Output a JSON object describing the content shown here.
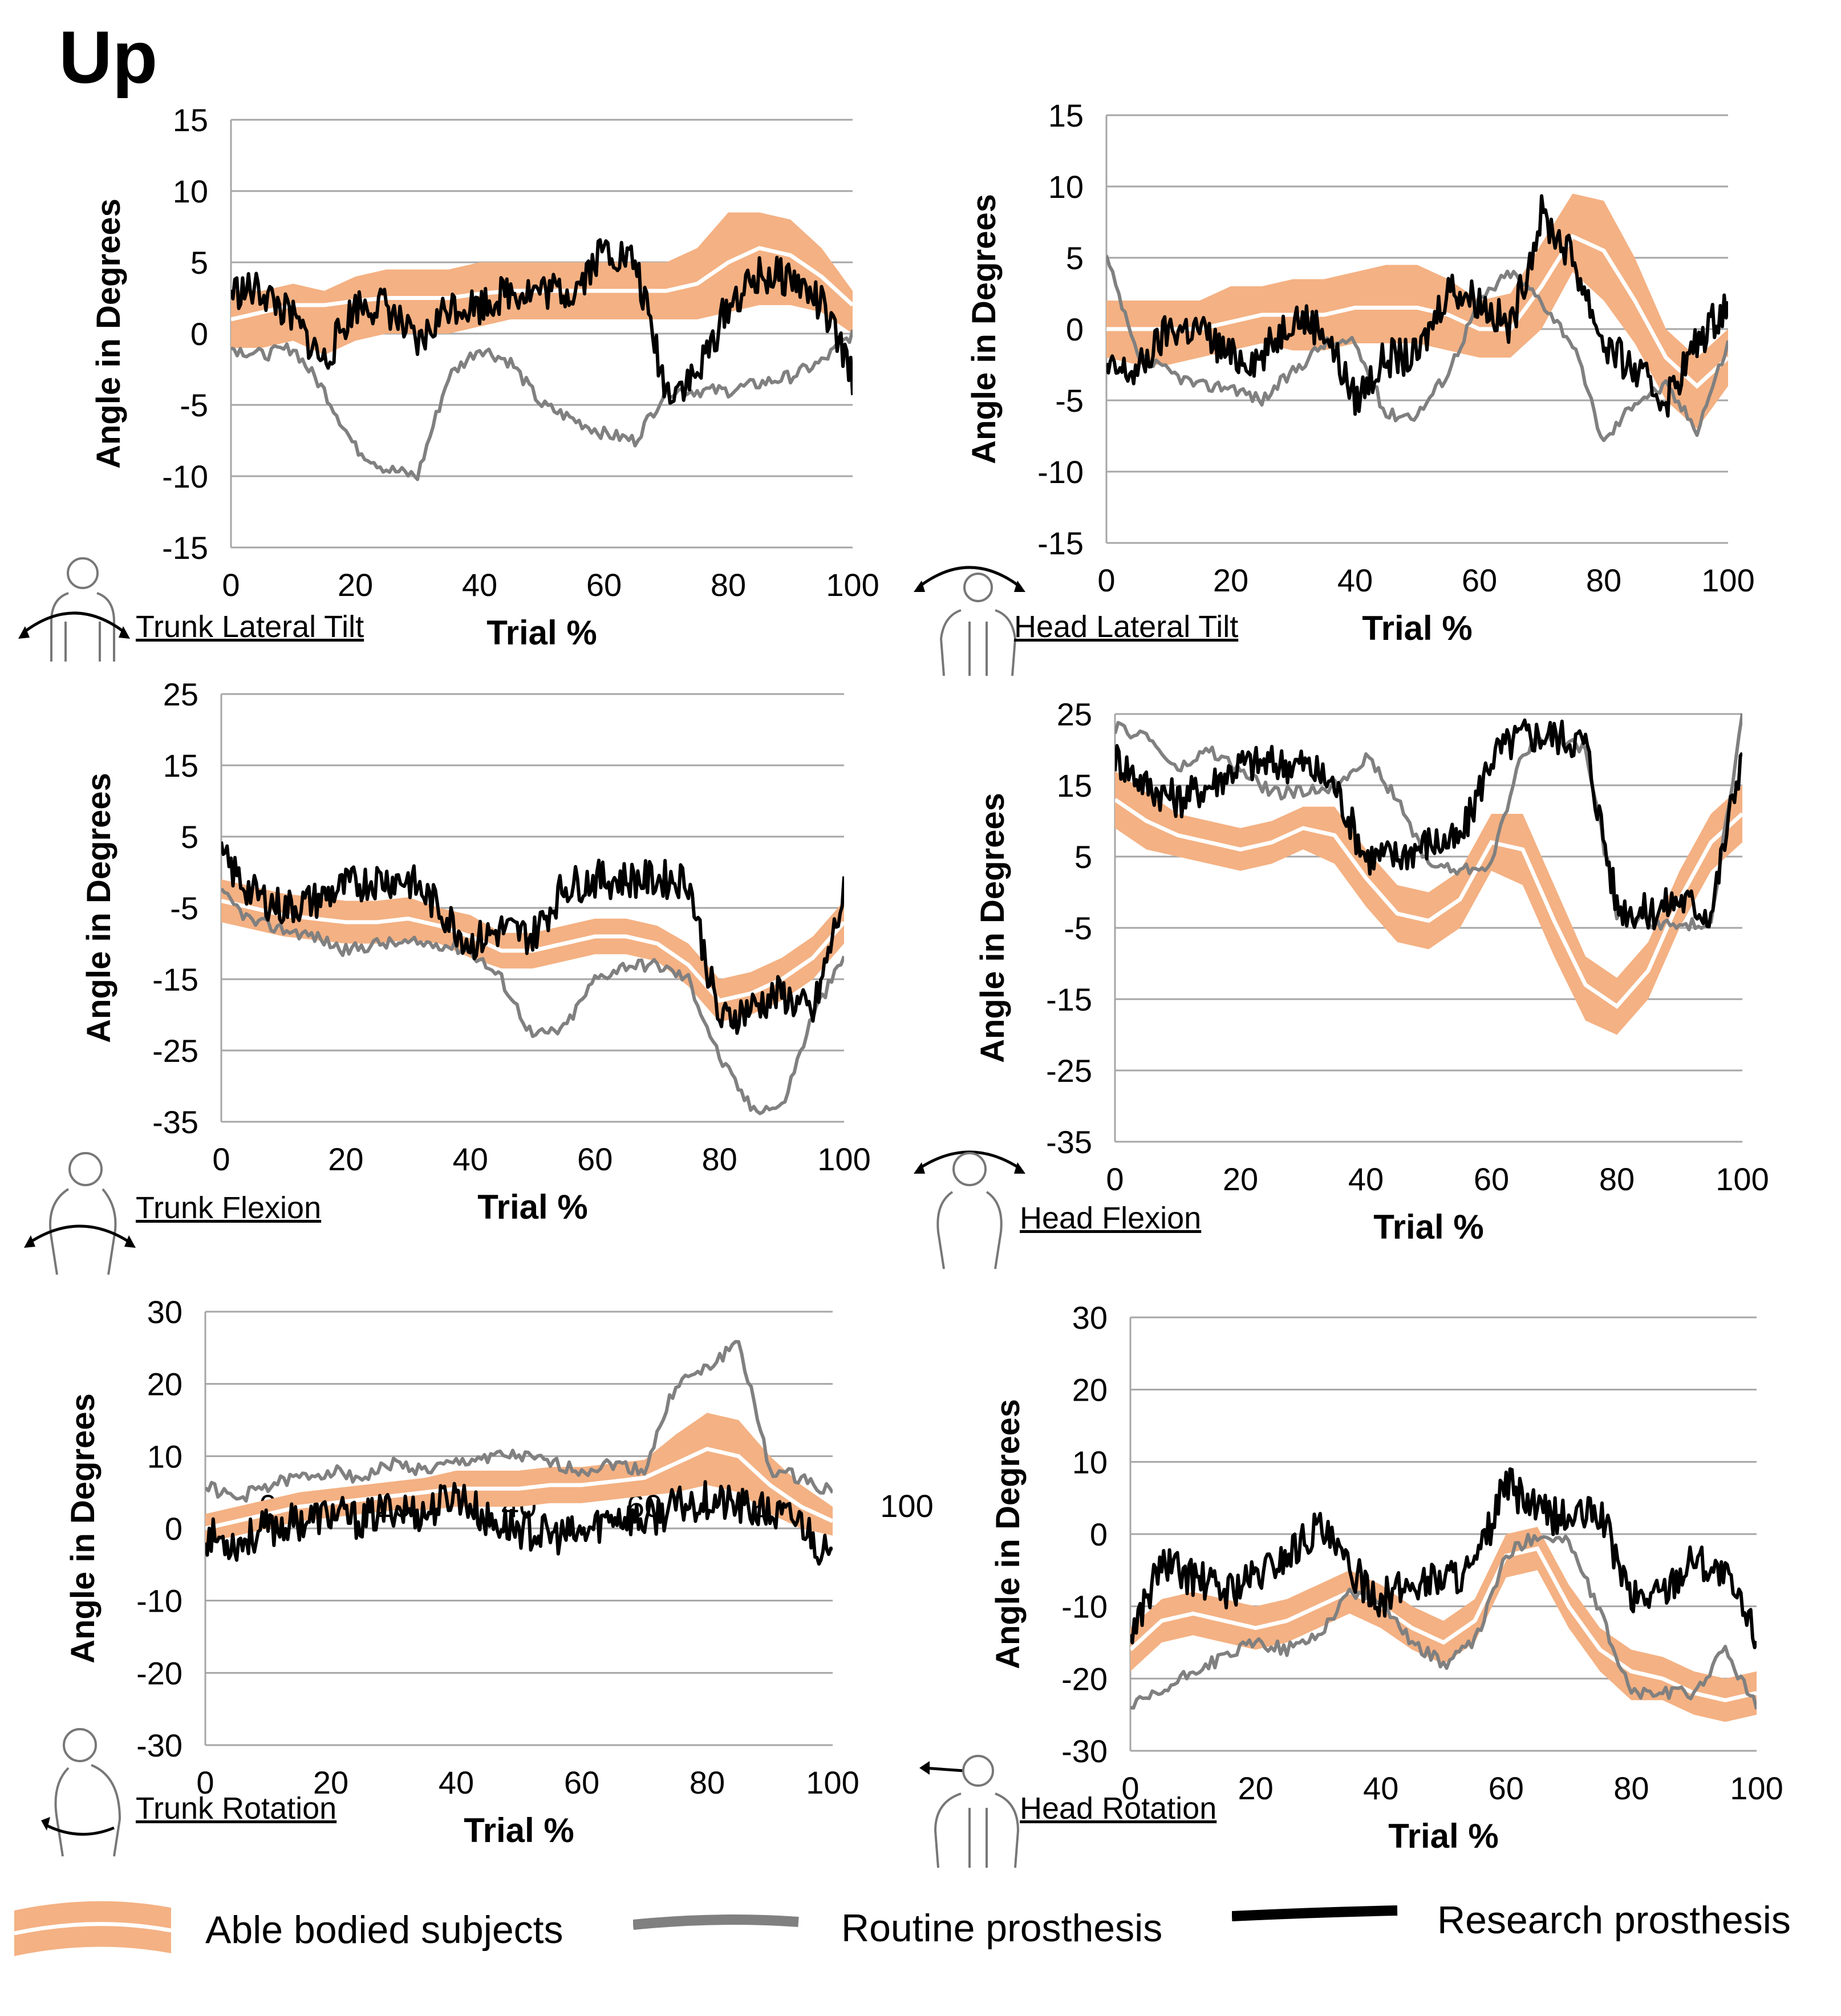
{
  "figure_title": "Up",
  "colors": {
    "band": "#f4b183",
    "band_center": "#ffffff",
    "routine": "#808080",
    "research": "#000000",
    "grid": "#a6a6a6"
  },
  "legend": {
    "able_bodied": "Able bodied subjects",
    "routine": "Routine prosthesis",
    "research": "Research prosthesis"
  },
  "chart_data": [
    {
      "id": "trunk_lateral_tilt",
      "type": "line",
      "caption": "Trunk Lateral Tilt",
      "icon": "trunk-lateral-tilt-icon",
      "ylabel": "Angle in Degrees",
      "xlabel": "Trial %",
      "xlim": [
        0,
        100
      ],
      "ylim": [
        -15,
        15
      ],
      "yticks": [
        15,
        10,
        5,
        0,
        -5,
        -10,
        -15
      ],
      "xticks": [
        0,
        20,
        40,
        60,
        80,
        100
      ],
      "x": [
        0,
        5,
        10,
        15,
        20,
        25,
        30,
        35,
        40,
        45,
        50,
        55,
        60,
        65,
        70,
        75,
        80,
        85,
        90,
        95,
        100
      ],
      "series": [
        {
          "name": "Able bodied subjects",
          "kind": "band",
          "mean": [
            1,
            1.5,
            2,
            2,
            2.3,
            2.5,
            2.5,
            2.5,
            2.8,
            3,
            3,
            3,
            3,
            3,
            3,
            3.5,
            5,
            6,
            5.5,
            4,
            2
          ],
          "lower": [
            -1,
            -1,
            -0.5,
            -1.5,
            -0.5,
            0,
            0,
            0,
            0.5,
            1,
            1,
            1,
            1,
            1,
            1,
            1,
            1.5,
            2,
            2,
            1.5,
            0
          ],
          "upper": [
            3,
            3,
            3.5,
            3,
            4,
            4.5,
            4.5,
            4.5,
            5,
            5,
            5,
            5,
            5,
            5,
            5,
            6,
            8.5,
            8.5,
            8,
            6,
            3
          ]
        },
        {
          "name": "Routine prosthesis",
          "kind": "line",
          "values": [
            -1,
            -1.5,
            -1,
            -4,
            -8,
            -9.5,
            -10,
            -3,
            -1,
            -2,
            -5,
            -6,
            -7,
            -7.5,
            -4,
            -4,
            -4,
            -3.5,
            -3,
            -2,
            0
          ]
        },
        {
          "name": "Research prosthesis",
          "kind": "line",
          "values": [
            3,
            3,
            1,
            -2,
            2,
            2,
            -1,
            2,
            2,
            3,
            3,
            3,
            6,
            5,
            -4,
            -3,
            2,
            4,
            4,
            2,
            -3
          ]
        }
      ]
    },
    {
      "id": "head_lateral_tilt",
      "type": "line",
      "caption": "Head Lateral Tilt",
      "icon": "head-lateral-tilt-icon",
      "ylabel": "Angle in Degrees",
      "xlabel": "Trial %",
      "xlim": [
        0,
        100
      ],
      "ylim": [
        -15,
        15
      ],
      "yticks": [
        15,
        10,
        5,
        0,
        -5,
        -10,
        -15
      ],
      "xticks": [
        0,
        20,
        40,
        60,
        80,
        100
      ],
      "x": [
        0,
        5,
        10,
        15,
        20,
        25,
        30,
        35,
        40,
        45,
        50,
        55,
        60,
        65,
        70,
        75,
        80,
        85,
        90,
        95,
        100
      ],
      "series": [
        {
          "name": "Able bodied subjects",
          "kind": "band",
          "mean": [
            0,
            0,
            0,
            0,
            0.5,
            1,
            1,
            1,
            1.5,
            1.5,
            1.5,
            1,
            0,
            0,
            3,
            6.5,
            5.5,
            2,
            -2,
            -4,
            -2
          ],
          "lower": [
            -2,
            -2.5,
            -2.5,
            -2,
            -1.5,
            -1,
            -1.5,
            -1.5,
            -1,
            -1,
            -1,
            -1.5,
            -2,
            -2,
            0,
            4,
            2,
            -1,
            -5,
            -7,
            -4
          ],
          "upper": [
            2,
            2,
            2,
            2,
            3,
            3,
            3.5,
            3.5,
            4,
            4.5,
            4.5,
            3.5,
            2,
            2.5,
            6,
            9.5,
            9,
            5,
            0,
            -2,
            0
          ]
        },
        {
          "name": "Routine prosthesis",
          "kind": "line",
          "values": [
            5,
            -2,
            -3,
            -4,
            -4,
            -5,
            -3,
            -1,
            -1,
            -6,
            -6,
            -3,
            2,
            4,
            2,
            -1,
            -8,
            -5,
            -4,
            -7,
            -1
          ]
        },
        {
          "name": "Research prosthesis",
          "kind": "line",
          "values": [
            -3,
            -3,
            0,
            0,
            -2,
            -2,
            1,
            0,
            -5,
            -2,
            -2,
            3,
            2,
            0,
            8,
            5,
            -1,
            -3,
            -5,
            -1,
            2
          ]
        }
      ]
    },
    {
      "id": "trunk_flexion",
      "type": "line",
      "caption": "Trunk Flexion",
      "icon": "trunk-flexion-icon",
      "ylabel": "Angle in Degrees",
      "xlabel": "Trial %",
      "xlim": [
        0,
        100
      ],
      "ylim": [
        -35,
        25
      ],
      "yticks": [
        25,
        15,
        5,
        -5,
        -15,
        -25,
        -35
      ],
      "xticks": [
        0,
        20,
        40,
        60,
        80,
        100
      ],
      "x": [
        0,
        5,
        10,
        15,
        20,
        25,
        30,
        35,
        40,
        45,
        50,
        55,
        60,
        65,
        70,
        75,
        80,
        85,
        90,
        95,
        100
      ],
      "series": [
        {
          "name": "Able bodied subjects",
          "kind": "band",
          "mean": [
            -4,
            -5,
            -6,
            -6.5,
            -7,
            -7,
            -6.5,
            -7.5,
            -9,
            -11,
            -11,
            -10,
            -9,
            -9,
            -10,
            -13,
            -18,
            -17,
            -15,
            -12,
            -7
          ],
          "lower": [
            -7,
            -8,
            -9,
            -9.5,
            -10,
            -10,
            -9.5,
            -10,
            -12,
            -13.5,
            -13.5,
            -12.5,
            -11.5,
            -11.5,
            -12.5,
            -16,
            -21,
            -20,
            -18,
            -15,
            -10
          ],
          "upper": [
            -1,
            -2,
            -3,
            -3.5,
            -4,
            -4,
            -3.5,
            -5,
            -6,
            -8.5,
            -8.5,
            -7.5,
            -6.5,
            -6.5,
            -7.5,
            -10,
            -15,
            -14,
            -12,
            -9,
            -4
          ]
        },
        {
          "name": "Routine prosthesis",
          "kind": "line",
          "values": [
            -3,
            -7,
            -8,
            -9,
            -11,
            -10,
            -10,
            -10,
            -11,
            -15,
            -23,
            -22,
            -15,
            -13,
            -13,
            -15,
            -26,
            -33,
            -33,
            -20,
            -12
          ]
        },
        {
          "name": "Research prosthesis",
          "kind": "line",
          "values": [
            2,
            -3,
            -5,
            -4,
            -2,
            -1,
            -1,
            -5,
            -10,
            -8,
            -9,
            -2,
            -1,
            -1,
            -1,
            -1,
            -21,
            -19,
            -17,
            -20,
            -3
          ]
        }
      ]
    },
    {
      "id": "head_flexion",
      "type": "line",
      "caption": "Head Flexion",
      "icon": "head-flexion-icon",
      "ylabel": "Angle in Degrees",
      "xlabel": "Trial %",
      "xlim": [
        0,
        100
      ],
      "ylim": [
        -35,
        25
      ],
      "yticks": [
        25,
        15,
        5,
        -5,
        -15,
        -25,
        -35
      ],
      "xticks": [
        0,
        20,
        40,
        60,
        80,
        100
      ],
      "x": [
        0,
        5,
        10,
        15,
        20,
        25,
        30,
        35,
        40,
        45,
        50,
        55,
        60,
        65,
        70,
        75,
        80,
        85,
        90,
        95,
        100
      ],
      "series": [
        {
          "name": "Able bodied subjects",
          "kind": "band",
          "mean": [
            13,
            10,
            8,
            7,
            6,
            7,
            9,
            8,
            2,
            -3,
            -4,
            -1,
            7,
            6,
            -4,
            -13,
            -16,
            -11,
            -1,
            7,
            11
          ],
          "lower": [
            9,
            6,
            5,
            4,
            3,
            4,
            6,
            4,
            -2,
            -7,
            -8,
            -5,
            3,
            1,
            -9,
            -18,
            -20,
            -15,
            -5,
            3,
            7
          ],
          "upper": [
            17,
            14,
            11,
            10,
            9,
            10,
            12,
            12,
            6,
            1,
            0,
            3,
            11,
            11,
            1,
            -9,
            -12,
            -7,
            3,
            11,
            15
          ],
          "center_color": "#ffffff"
        },
        {
          "name": "Routine prosthesis",
          "kind": "line",
          "values": [
            23,
            22,
            17,
            20,
            17,
            14,
            14,
            15,
            19,
            13,
            4,
            3,
            4,
            20,
            22,
            20,
            -3,
            -4,
            -5,
            -4,
            25
          ]
        },
        {
          "name": "Research prosthesis",
          "kind": "line",
          "values": [
            19,
            15,
            13,
            15,
            18,
            18,
            18,
            15,
            5,
            5,
            7,
            7,
            19,
            22,
            22,
            21,
            -2,
            -3,
            -1,
            -3,
            20
          ]
        }
      ]
    },
    {
      "id": "trunk_rotation",
      "type": "line",
      "caption": "Trunk Rotation",
      "icon": "trunk-rotation-icon",
      "ylabel": "Angle in Degrees",
      "xlabel": "Trial %",
      "xlim": [
        0,
        100
      ],
      "ylim": [
        -30,
        30
      ],
      "yticks": [
        30,
        20,
        10,
        0,
        -10,
        -20,
        -30
      ],
      "xticks": [
        0,
        20,
        40,
        60,
        80,
        100
      ],
      "inner_xtick_labels": [
        "0",
        "20",
        "40",
        "60",
        "80",
        "100"
      ],
      "x": [
        0,
        5,
        10,
        15,
        20,
        25,
        30,
        35,
        40,
        45,
        50,
        55,
        60,
        65,
        70,
        75,
        80,
        85,
        90,
        95,
        100
      ],
      "series": [
        {
          "name": "Able bodied subjects",
          "kind": "band",
          "mean": [
            0,
            1,
            2,
            3,
            3.5,
            4,
            4.5,
            5,
            5.5,
            5.5,
            5.5,
            6,
            6,
            6.5,
            7,
            9,
            11,
            10,
            6,
            3,
            1
          ],
          "lower": [
            -2,
            -1,
            0,
            1,
            1.5,
            2,
            2.5,
            2.5,
            3,
            3,
            3,
            3.5,
            3.5,
            4,
            4.5,
            5,
            6,
            5,
            2,
            0,
            -1
          ],
          "upper": [
            2,
            3,
            4,
            5,
            5.5,
            6,
            6.5,
            7,
            8,
            8,
            8,
            8.5,
            8.5,
            9,
            9.5,
            13,
            16,
            15,
            10,
            6,
            3
          ]
        },
        {
          "name": "Routine prosthesis",
          "kind": "line",
          "values": [
            6,
            4,
            6,
            7,
            8,
            7,
            9,
            8,
            9,
            10,
            10,
            9,
            8,
            9,
            8,
            20,
            22,
            26,
            8,
            7,
            5
          ]
        },
        {
          "name": "Research prosthesis",
          "kind": "line",
          "values": [
            -1,
            -2,
            0,
            1,
            2,
            1,
            3,
            2,
            5,
            1,
            0,
            -1,
            -1,
            2,
            1,
            3,
            4,
            3,
            2,
            1,
            -5
          ]
        }
      ]
    },
    {
      "id": "head_rotation",
      "type": "line",
      "caption": "Head Rotation",
      "icon": "head-rotation-icon",
      "ylabel": "Angle in Degrees",
      "xlabel": "Trial %",
      "xlim": [
        0,
        100
      ],
      "ylim": [
        -30,
        30
      ],
      "yticks": [
        30,
        20,
        10,
        0,
        -10,
        -20,
        -30
      ],
      "xticks": [
        0,
        20,
        40,
        60,
        80,
        100
      ],
      "x": [
        0,
        5,
        10,
        15,
        20,
        25,
        30,
        35,
        40,
        45,
        50,
        55,
        60,
        65,
        70,
        75,
        80,
        85,
        90,
        95,
        100
      ],
      "series": [
        {
          "name": "Able bodied subjects",
          "kind": "band",
          "mean": [
            -16,
            -12,
            -11,
            -12,
            -13,
            -12,
            -10,
            -8,
            -10,
            -13,
            -15,
            -12,
            -3,
            -2,
            -10,
            -16,
            -19,
            -20,
            -22,
            -23,
            -22
          ],
          "lower": [
            -19,
            -15,
            -14,
            -15,
            -16,
            -15,
            -13,
            -11,
            -13,
            -16,
            -18,
            -15,
            -6,
            -5,
            -13,
            -19,
            -23,
            -23,
            -25,
            -26,
            -25
          ],
          "upper": [
            -13,
            -9,
            -8,
            -9,
            -10,
            -9,
            -7,
            -5,
            -7,
            -10,
            -12,
            -9,
            0,
            1,
            -7,
            -13,
            -16,
            -17,
            -19,
            -20,
            -19
          ]
        },
        {
          "name": "Routine prosthesis",
          "kind": "line",
          "values": [
            -24,
            -22,
            -19,
            -17,
            -15,
            -16,
            -14,
            -8,
            -9,
            -15,
            -18,
            -15,
            -3,
            0,
            -1,
            -11,
            -22,
            -22,
            -22,
            -16,
            -24
          ]
        },
        {
          "name": "Research prosthesis",
          "kind": "line",
          "values": [
            -14,
            -4,
            -6,
            -8,
            -6,
            -3,
            1,
            -5,
            -9,
            -7,
            -6,
            -5,
            7,
            3,
            2,
            3,
            -9,
            -8,
            -3,
            -6,
            -14
          ]
        }
      ]
    }
  ]
}
